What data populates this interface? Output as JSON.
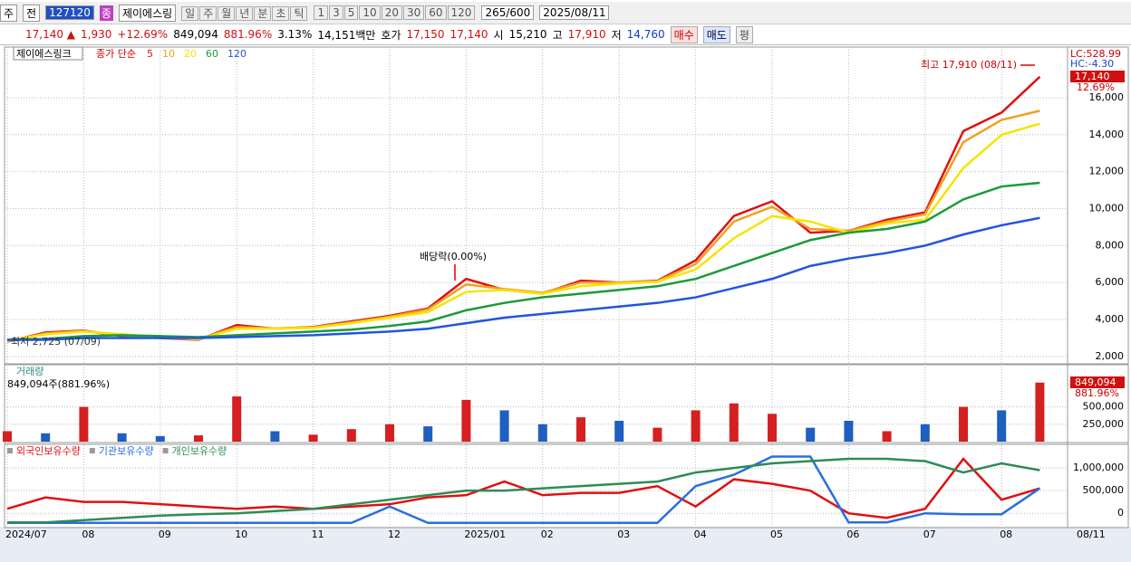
{
  "toolbar": {
    "market": "주",
    "prev": "전",
    "code": "127120",
    "name_badge": "종",
    "name": "제이에스링",
    "periods": [
      "일",
      "주",
      "월",
      "년",
      "분",
      "초",
      "틱"
    ],
    "intervals": [
      "1",
      "3",
      "5",
      "10",
      "20",
      "30",
      "60",
      "120"
    ],
    "count": "265/600",
    "date": "2025/08/11"
  },
  "quote": {
    "price": "17,140 ▲",
    "change": "1,930",
    "rate": "+12.69%",
    "volume": "849,094",
    "volume_ratio": "881.96%",
    "turnover": "3.13%",
    "amount": "14,151백만",
    "ask_label": "호가",
    "ask": "17,150",
    "bid": "17,140",
    "open_label": "시",
    "open": "15,210",
    "high_label": "고",
    "high": "17,910",
    "low_label": "저",
    "low": "14,760",
    "buy": "매수",
    "sell": "매도",
    "avg": "평"
  },
  "chart_data": [
    {
      "type": "line",
      "title": "제이에스링크",
      "legend_title": "종가 단순",
      "ylim": [
        1700,
        18600
      ],
      "yticks": [
        {
          "value": 2000,
          "label": "2,000"
        },
        {
          "value": 4000,
          "label": "4,000"
        },
        {
          "value": 6000,
          "label": "6,000"
        },
        {
          "value": 8000,
          "label": "8,000"
        },
        {
          "value": 10000,
          "label": "10,000"
        },
        {
          "value": 12000,
          "label": "12,000"
        },
        {
          "value": 14000,
          "label": "14,000"
        },
        {
          "value": 16000,
          "label": "16,000"
        }
      ],
      "grid": true,
      "high_label": "최고 17,910 (08/11)",
      "low_label": "최저 2,725 (07/09)",
      "dividend_label": "배당락(0.00%)",
      "lc_label": "LC:528.99",
      "hc_label": "HC:-4.30",
      "last_price_label": "17,140",
      "last_rate_label": "12.69%",
      "series": [
        {
          "name": "5",
          "color": "#e01010",
          "values": [
            2800,
            3300,
            3400,
            3100,
            3000,
            2900,
            3700,
            3500,
            3600,
            3900,
            4200,
            4600,
            6200,
            5600,
            5400,
            6100,
            6000,
            6100,
            7200,
            9600,
            10400,
            8700,
            8800,
            9400,
            9800,
            14200,
            15200,
            17140
          ]
        },
        {
          "name": "10",
          "color": "#f0a020",
          "values": [
            2820,
            3250,
            3380,
            3150,
            3020,
            2920,
            3600,
            3520,
            3580,
            3850,
            4150,
            4550,
            5900,
            5650,
            5450,
            6000,
            6000,
            6080,
            7000,
            9300,
            10100,
            8900,
            8800,
            9300,
            9700,
            13600,
            14800,
            15300
          ]
        },
        {
          "name": "20",
          "color": "#f5e400",
          "values": [
            2850,
            3200,
            3350,
            3200,
            3050,
            2950,
            3500,
            3500,
            3550,
            3800,
            4100,
            4400,
            5500,
            5600,
            5400,
            5800,
            5950,
            6050,
            6700,
            8400,
            9600,
            9300,
            8700,
            9200,
            9400,
            12200,
            14000,
            14600
          ]
        },
        {
          "name": "60",
          "color": "#1a9a3a",
          "values": [
            2900,
            2950,
            3100,
            3150,
            3100,
            3050,
            3150,
            3250,
            3350,
            3450,
            3650,
            3900,
            4500,
            4900,
            5200,
            5400,
            5600,
            5800,
            6200,
            6900,
            7600,
            8300,
            8700,
            8900,
            9300,
            10500,
            11200,
            11400
          ]
        },
        {
          "name": "120",
          "color": "#2255dd",
          "values": [
            2900,
            2900,
            3000,
            3000,
            3000,
            3000,
            3050,
            3100,
            3150,
            3250,
            3350,
            3500,
            3800,
            4100,
            4300,
            4500,
            4700,
            4900,
            5200,
            5700,
            6200,
            6900,
            7300,
            7600,
            8000,
            8600,
            9100,
            9500
          ]
        }
      ]
    },
    {
      "type": "bar",
      "title": "거래량",
      "subtitle": "849,094주(881.96%)",
      "last_label": "849,094",
      "last_rate_label": "881.96%",
      "ylim": [
        0,
        1080000
      ],
      "yticks": [
        {
          "value": 250000,
          "label": "250,000"
        },
        {
          "value": 500000,
          "label": "500,000"
        }
      ],
      "grid": true,
      "values": [
        150000,
        120000,
        500000,
        120000,
        80000,
        90000,
        650000,
        150000,
        100000,
        180000,
        250000,
        220000,
        600000,
        450000,
        250000,
        350000,
        300000,
        200000,
        450000,
        550000,
        400000,
        200000,
        300000,
        150000,
        250000,
        500000,
        450000,
        849094
      ],
      "colors": [
        "#d42020",
        "#1f5fbf",
        "#d42020",
        "#1f5fbf",
        "#1f5fbf",
        "#d42020",
        "#d42020",
        "#1f5fbf",
        "#d42020",
        "#d42020",
        "#d42020",
        "#1f5fbf",
        "#d42020",
        "#1f5fbf",
        "#1f5fbf",
        "#d42020",
        "#1f5fbf",
        "#d42020",
        "#d42020",
        "#d42020",
        "#d42020",
        "#1f5fbf",
        "#1f5fbf",
        "#d42020",
        "#1f5fbf",
        "#d42020",
        "#1f5fbf",
        "#d42020"
      ]
    },
    {
      "type": "line",
      "ylim": [
        -255000,
        1500000
      ],
      "yticks": [
        0,
        {
          "value": 500000,
          "label": "500,000"
        },
        {
          "value": 1000000,
          "label": "1,000,000"
        }
      ],
      "grid": true,
      "categories": [
        "2024/07",
        null,
        "08",
        null,
        "09",
        null,
        "10",
        null,
        "11",
        null,
        "12",
        null,
        "2025/01",
        null,
        "02",
        null,
        "03",
        null,
        "04",
        null,
        "05",
        null,
        "06",
        null,
        "07",
        null,
        "08",
        null
      ],
      "last_date": "08/11",
      "series": [
        {
          "name": "외국인보유수량",
          "color": "#e01010",
          "values": [
            100000,
            350000,
            250000,
            250000,
            200000,
            150000,
            100000,
            150000,
            100000,
            150000,
            200000,
            350000,
            400000,
            700000,
            400000,
            450000,
            450000,
            600000,
            150000,
            750000,
            650000,
            500000,
            0,
            -100000,
            100000,
            1200000,
            300000,
            550000
          ]
        },
        {
          "name": "기관보유수량",
          "color": "#2a6ee0",
          "values": [
            -210000,
            -210000,
            -210000,
            -210000,
            -210000,
            -210000,
            -210000,
            -210000,
            -210000,
            -210000,
            150000,
            -210000,
            -210000,
            -210000,
            -210000,
            -210000,
            -210000,
            -210000,
            600000,
            850000,
            1250000,
            1250000,
            -200000,
            -200000,
            0,
            -20000,
            -20000,
            550000
          ]
        },
        {
          "name": "개인보유수량",
          "color": "#2e8b57",
          "values": [
            -200000,
            -200000,
            -150000,
            -100000,
            -50000,
            -20000,
            0,
            50000,
            100000,
            200000,
            300000,
            400000,
            500000,
            500000,
            550000,
            600000,
            650000,
            700000,
            900000,
            1000000,
            1100000,
            1150000,
            1200000,
            1200000,
            1150000,
            900000,
            1100000,
            950000
          ]
        }
      ]
    }
  ]
}
